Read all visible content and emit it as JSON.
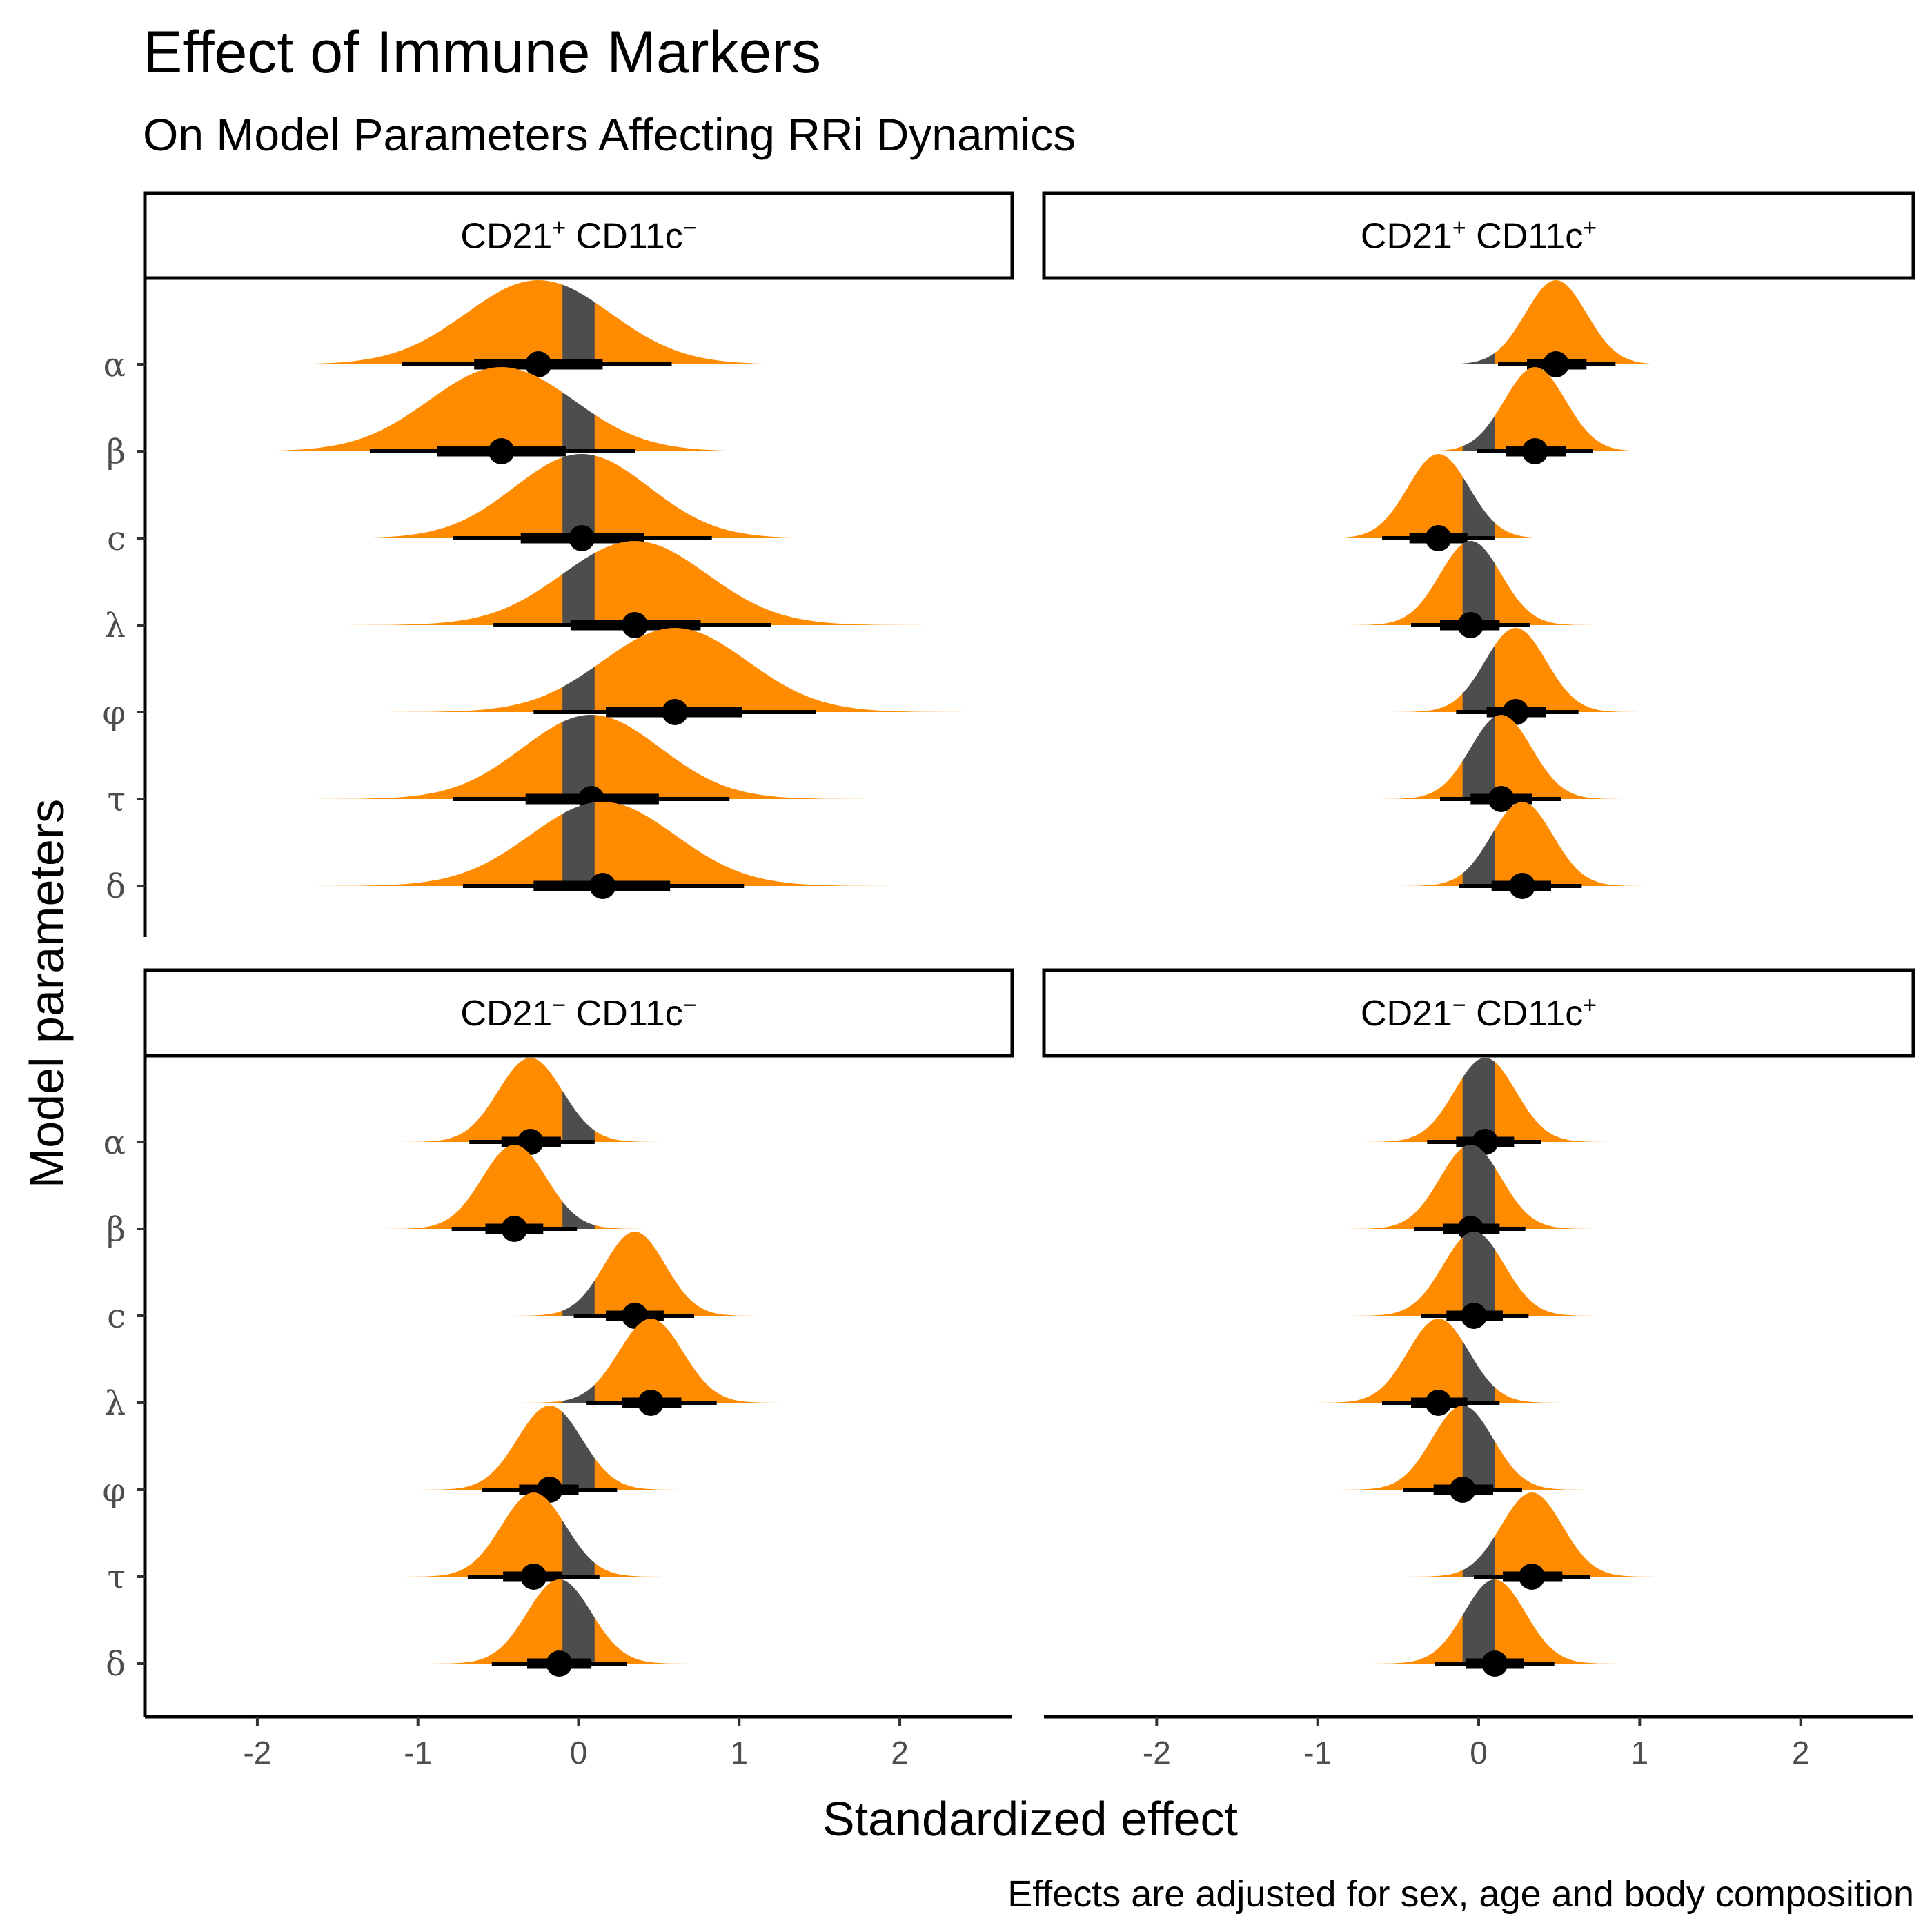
{
  "title": "Effect of Immune Markers",
  "subtitle": "On Model Parameters Affecting RRi Dynamics",
  "caption": "Effects are adjusted for sex, age and body composition",
  "xlabel": "Standardized effect",
  "ylabel": "Model parameters",
  "colors": {
    "positive_fill": "#FF8C00",
    "rope_fill": "#4D4D4D",
    "interval": "#000000",
    "point": "#000000"
  },
  "chart_data": {
    "type": "halfeye",
    "xlim": [
      -2.7,
      2.7
    ],
    "x_ticks": [
      -2,
      -1,
      0,
      1,
      2
    ],
    "x_tick_labels": [
      "-2",
      "-1",
      "0",
      "1",
      "2"
    ],
    "rope": [
      -0.1,
      0.1
    ],
    "parameters": [
      "α",
      "β",
      "c",
      "λ",
      "φ",
      "τ",
      "δ"
    ],
    "grid": false,
    "panels": [
      {
        "strip": {
          "cd21": "CD21",
          "cd21_sign": "+",
          "cd11c": "CD11c",
          "cd11c_sign": "−"
        },
        "estimates": [
          {
            "param": "α",
            "median": -0.25,
            "sd": 0.45,
            "inner": [
              -0.65,
              0.15
            ],
            "outer": [
              -1.1,
              0.58
            ]
          },
          {
            "param": "β",
            "median": -0.48,
            "sd": 0.45,
            "inner": [
              -0.88,
              -0.08
            ],
            "outer": [
              -1.3,
              0.35
            ]
          },
          {
            "param": "c",
            "median": 0.02,
            "sd": 0.42,
            "inner": [
              -0.36,
              0.41
            ],
            "outer": [
              -0.78,
              0.83
            ]
          },
          {
            "param": "λ",
            "median": 0.35,
            "sd": 0.45,
            "inner": [
              -0.05,
              0.76
            ],
            "outer": [
              -0.53,
              1.2
            ]
          },
          {
            "param": "φ",
            "median": 0.6,
            "sd": 0.45,
            "inner": [
              0.17,
              1.02
            ],
            "outer": [
              -0.28,
              1.48
            ]
          },
          {
            "param": "τ",
            "median": 0.08,
            "sd": 0.43,
            "inner": [
              -0.33,
              0.5
            ],
            "outer": [
              -0.78,
              0.94
            ]
          },
          {
            "param": "δ",
            "median": 0.15,
            "sd": 0.45,
            "inner": [
              -0.28,
              0.57
            ],
            "outer": [
              -0.72,
              1.03
            ]
          }
        ]
      },
      {
        "strip": {
          "cd21": "CD21",
          "cd21_sign": "+",
          "cd11c": "CD11c",
          "cd11c_sign": "+"
        },
        "estimates": [
          {
            "param": "α",
            "median": 0.48,
            "sd": 0.19,
            "inner": [
              0.3,
              0.67
            ],
            "outer": [
              0.12,
              0.85
            ]
          },
          {
            "param": "β",
            "median": 0.35,
            "sd": 0.19,
            "inner": [
              0.17,
              0.54
            ],
            "outer": [
              -0.01,
              0.71
            ]
          },
          {
            "param": "c",
            "median": -0.25,
            "sd": 0.19,
            "inner": [
              -0.43,
              -0.07
            ],
            "outer": [
              -0.6,
              0.1
            ]
          },
          {
            "param": "λ",
            "median": -0.05,
            "sd": 0.19,
            "inner": [
              -0.24,
              0.13
            ],
            "outer": [
              -0.42,
              0.32
            ]
          },
          {
            "param": "φ",
            "median": 0.23,
            "sd": 0.19,
            "inner": [
              0.05,
              0.42
            ],
            "outer": [
              -0.14,
              0.62
            ]
          },
          {
            "param": "τ",
            "median": 0.14,
            "sd": 0.19,
            "inner": [
              -0.05,
              0.33
            ],
            "outer": [
              -0.24,
              0.51
            ]
          },
          {
            "param": "δ",
            "median": 0.27,
            "sd": 0.19,
            "inner": [
              0.08,
              0.45
            ],
            "outer": [
              -0.12,
              0.64
            ]
          }
        ]
      },
      {
        "strip": {
          "cd21": "CD21",
          "cd21_sign": "−",
          "cd11c": "CD11c",
          "cd11c_sign": "−"
        },
        "estimates": [
          {
            "param": "α",
            "median": -0.3,
            "sd": 0.2,
            "inner": [
              -0.48,
              -0.11
            ],
            "outer": [
              -0.68,
              0.1
            ]
          },
          {
            "param": "β",
            "median": -0.4,
            "sd": 0.2,
            "inner": [
              -0.58,
              -0.22
            ],
            "outer": [
              -0.79,
              -0.01
            ]
          },
          {
            "param": "c",
            "median": 0.35,
            "sd": 0.19,
            "inner": [
              0.17,
              0.53
            ],
            "outer": [
              -0.03,
              0.72
            ]
          },
          {
            "param": "λ",
            "median": 0.45,
            "sd": 0.2,
            "inner": [
              0.27,
              0.64
            ],
            "outer": [
              0.05,
              0.86
            ]
          },
          {
            "param": "φ",
            "median": -0.18,
            "sd": 0.2,
            "inner": [
              -0.37,
              0.0
            ],
            "outer": [
              -0.6,
              0.24
            ]
          },
          {
            "param": "τ",
            "median": -0.28,
            "sd": 0.2,
            "inner": [
              -0.47,
              -0.1
            ],
            "outer": [
              -0.69,
              0.13
            ]
          },
          {
            "param": "δ",
            "median": -0.12,
            "sd": 0.2,
            "inner": [
              -0.32,
              0.08
            ],
            "outer": [
              -0.54,
              0.3
            ]
          }
        ]
      },
      {
        "strip": {
          "cd21": "CD21",
          "cd21_sign": "−",
          "cd11c": "CD11c",
          "cd11c_sign": "+"
        },
        "estimates": [
          {
            "param": "α",
            "median": 0.04,
            "sd": 0.19,
            "inner": [
              -0.14,
              0.22
            ],
            "outer": [
              -0.32,
              0.39
            ]
          },
          {
            "param": "β",
            "median": -0.05,
            "sd": 0.19,
            "inner": [
              -0.22,
              0.13
            ],
            "outer": [
              -0.4,
              0.29
            ]
          },
          {
            "param": "c",
            "median": -0.03,
            "sd": 0.19,
            "inner": [
              -0.2,
              0.15
            ],
            "outer": [
              -0.36,
              0.31
            ]
          },
          {
            "param": "λ",
            "median": -0.25,
            "sd": 0.19,
            "inner": [
              -0.42,
              -0.07
            ],
            "outer": [
              -0.6,
              0.13
            ]
          },
          {
            "param": "φ",
            "median": -0.1,
            "sd": 0.19,
            "inner": [
              -0.28,
              0.09
            ],
            "outer": [
              -0.47,
              0.27
            ]
          },
          {
            "param": "τ",
            "median": 0.33,
            "sd": 0.19,
            "inner": [
              0.15,
              0.52
            ],
            "outer": [
              -0.03,
              0.69
            ]
          },
          {
            "param": "δ",
            "median": 0.1,
            "sd": 0.19,
            "inner": [
              -0.08,
              0.28
            ],
            "outer": [
              -0.27,
              0.47
            ]
          }
        ]
      }
    ]
  }
}
